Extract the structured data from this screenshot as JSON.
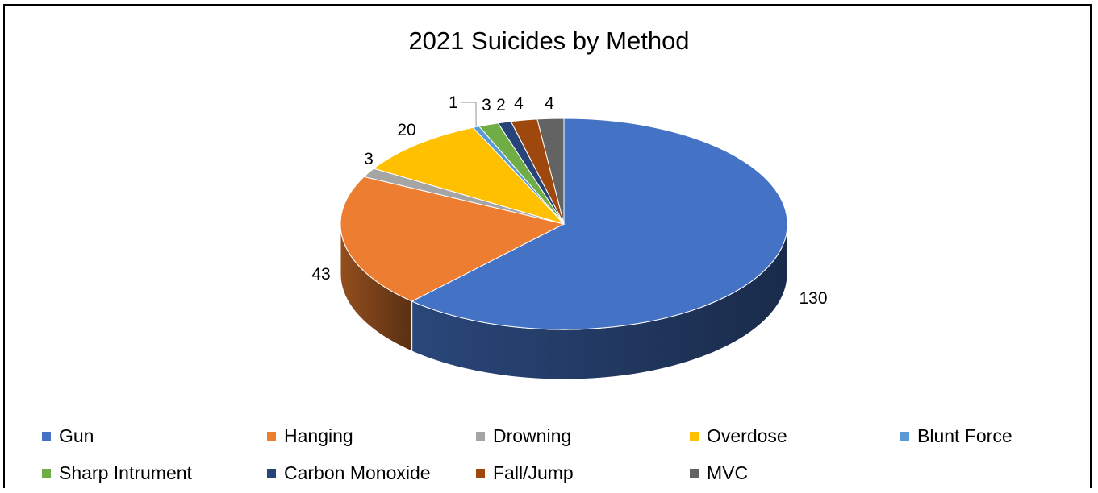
{
  "chart_data": {
    "type": "pie",
    "title": "2021 Suicides by Method",
    "categories": [
      "Gun",
      "Hanging",
      "Drowning",
      "Overdose",
      "Blunt Force",
      "Sharp Intrument",
      "Carbon Monoxide",
      "Fall/Jump",
      "MVC"
    ],
    "values": [
      130,
      43,
      3,
      20,
      1,
      3,
      2,
      4,
      4
    ],
    "colors": [
      "#4472C4",
      "#ED7D31",
      "#A5A5A5",
      "#FFC000",
      "#5B9BD5",
      "#70AD47",
      "#264478",
      "#9E480E",
      "#636363"
    ],
    "legend_position": "bottom",
    "three_d": true
  }
}
